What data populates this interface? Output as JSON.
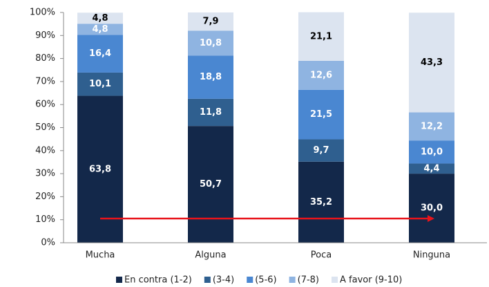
{
  "chart_data": {
    "type": "stacked_bar",
    "categories": [
      "Mucha",
      "Alguna",
      "Poca",
      "Ninguna"
    ],
    "series": [
      {
        "name": "En contra (1-2)",
        "color": "#13284a",
        "values": [
          63.8,
          50.7,
          35.2,
          30.0
        ],
        "value_labels": [
          "63,8",
          "50,7",
          "35,2",
          "30,0"
        ]
      },
      {
        "name": "(3-4)",
        "color": "#2f5f8f",
        "values": [
          10.1,
          11.8,
          9.7,
          4.4
        ],
        "value_labels": [
          "10,1",
          "11,8",
          "9,7",
          "4,4"
        ]
      },
      {
        "name": "(5-6)",
        "color": "#4a87d1",
        "values": [
          16.4,
          18.8,
          21.5,
          10.0
        ],
        "value_labels": [
          "16,4",
          "18,8",
          "21,5",
          "10,0"
        ]
      },
      {
        "name": "(7-8)",
        "color": "#8fb4e1",
        "values": [
          4.8,
          10.8,
          12.6,
          12.2
        ],
        "value_labels": [
          "4,8",
          "10,8",
          "12,6",
          "12,2"
        ]
      },
      {
        "name": "A favor (9-10)",
        "color": "#dce4f0",
        "values": [
          4.8,
          7.9,
          21.1,
          43.3
        ],
        "value_labels": [
          "4,8",
          "7,9",
          "21,1",
          "43,3"
        ]
      }
    ],
    "ylim": [
      0,
      100
    ],
    "yticks": [
      {
        "value": 0,
        "label": "0%"
      },
      {
        "value": 10,
        "label": "10%"
      },
      {
        "value": 20,
        "label": "20%"
      },
      {
        "value": 30,
        "label": "30%"
      },
      {
        "value": 40,
        "label": "40%"
      },
      {
        "value": 50,
        "label": "50%"
      },
      {
        "value": 60,
        "label": "60%"
      },
      {
        "value": 70,
        "label": "70%"
      },
      {
        "value": 80,
        "label": "80%"
      },
      {
        "value": 90,
        "label": "90%"
      },
      {
        "value": 100,
        "label": "100%"
      }
    ],
    "grid": false,
    "legend": "bottom"
  }
}
